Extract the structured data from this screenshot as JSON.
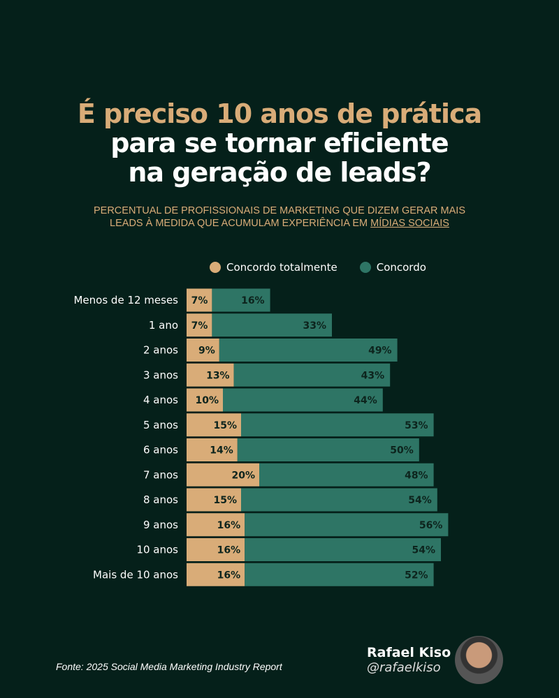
{
  "title": {
    "line1": "É preciso 10 anos de prática",
    "line2": "para se tornar eficiente",
    "line3": "na geração de leads?"
  },
  "subtitle": {
    "line1": "PERCENTUAL DE PROFISSIONAIS DE MARKETING QUE DIZEM GERAR MAIS",
    "line2_prefix": "LEADS À MEDIDA QUE ACUMULAM EXPERIÊNCIA EM ",
    "line2_link": "MÍDIAS SOCIAIS"
  },
  "footer": {
    "source": "Fonte: 2025 Social Media Marketing Industry Report",
    "author_name": "Rafael Kiso",
    "author_handle": "@rafaelkiso"
  },
  "colors": {
    "background": "#05201a",
    "concordo_totalmente": "#d9ac78",
    "concordo": "#2e7565"
  },
  "chart_data": {
    "type": "bar",
    "orientation": "horizontal",
    "stacked": true,
    "categories": [
      "Menos de 12 meses",
      "1 ano",
      "2 anos",
      "3 anos",
      "4 anos",
      "5 anos",
      "6 anos",
      "7 anos",
      "8 anos",
      "9 anos",
      "10 anos",
      "Mais de 10 anos"
    ],
    "series": [
      {
        "name": "Concordo totalmente",
        "color": "#d9ac78",
        "values": [
          7,
          7,
          9,
          13,
          10,
          15,
          14,
          20,
          15,
          16,
          16,
          16
        ]
      },
      {
        "name": "Concordo",
        "color": "#2e7565",
        "values": [
          16,
          33,
          49,
          43,
          44,
          53,
          50,
          48,
          54,
          56,
          54,
          52
        ]
      }
    ],
    "legend": "top",
    "unit": "%"
  }
}
